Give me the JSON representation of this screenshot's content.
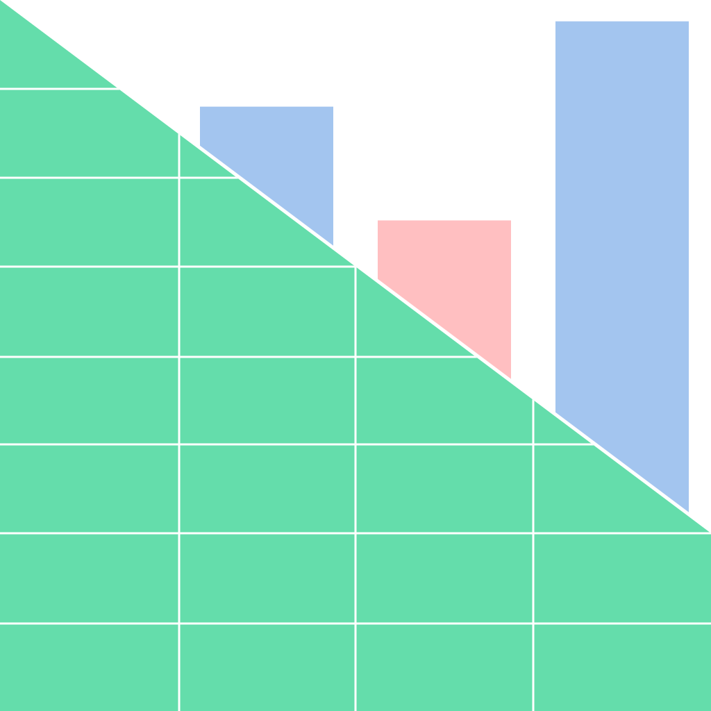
{
  "graphic": {
    "colors": {
      "background": "#ffffff",
      "sheet_green": "#64DDAB",
      "bar_blue": "#A3C5EF",
      "bar_pink": "#FFBFC1",
      "grid_lines": "#ffffff"
    },
    "bars": [
      {
        "color_key": "bar_blue",
        "level": 0.85
      },
      {
        "color_key": "bar_pink",
        "level": 0.69
      },
      {
        "color_key": "bar_blue",
        "level": 0.97
      }
    ]
  }
}
